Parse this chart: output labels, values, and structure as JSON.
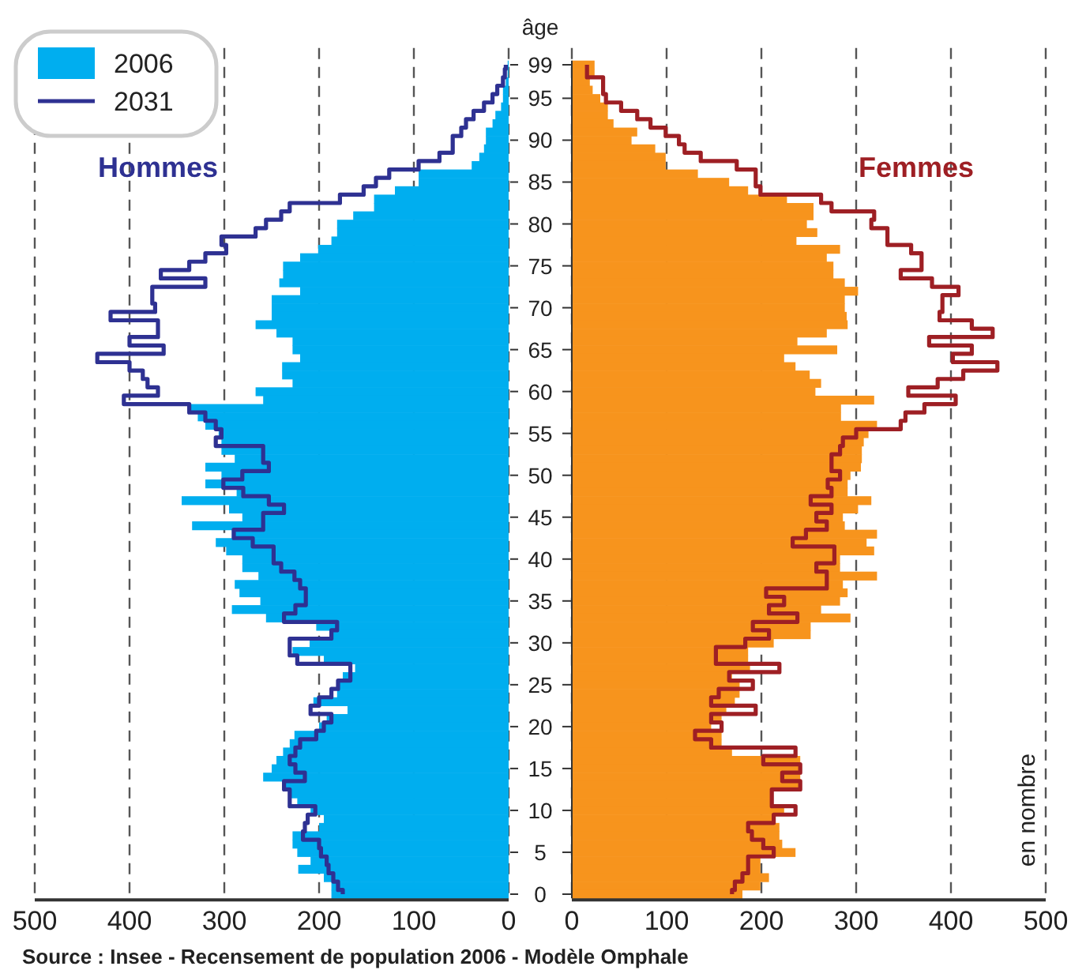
{
  "chart_data": [
    {
      "type": "bar",
      "orientation": "horizontal",
      "title": "Hommes",
      "tick_labels": "x",
      "grid": "x",
      "legend": "top left",
      "xlim": [
        500,
        0
      ],
      "xticks": [
        500,
        400,
        300,
        200,
        100,
        0
      ],
      "categories": [
        "99",
        null,
        null,
        null,
        "95",
        null,
        null,
        null,
        null,
        "90",
        null,
        null,
        null,
        null,
        "85",
        null,
        null,
        null,
        null,
        "80",
        null,
        null,
        null,
        null,
        "75",
        null,
        null,
        null,
        null,
        "70",
        null,
        null,
        null,
        null,
        "65",
        null,
        null,
        null,
        null,
        "60",
        null,
        null,
        null,
        null,
        "55",
        null,
        null,
        null,
        null,
        "50",
        null,
        null,
        null,
        null,
        "45",
        null,
        null,
        null,
        null,
        "40",
        null,
        null,
        null,
        null,
        "35",
        null,
        null,
        null,
        null,
        "30",
        null,
        null,
        null,
        null,
        "25",
        null,
        null,
        null,
        null,
        "20",
        null,
        null,
        null,
        null,
        "15",
        null,
        null,
        null,
        null,
        "10",
        null,
        null,
        null,
        null,
        "5",
        null,
        null,
        null,
        null,
        "0"
      ],
      "series": [
        {
          "name": "2006",
          "type": "bar",
          "color": "#00aeef",
          "values": [
            1,
            1,
            3,
            6,
            6,
            8,
            14,
            17,
            24,
            24,
            26,
            31,
            39,
            95,
            95,
            120,
            142,
            142,
            164,
            181,
            181,
            187,
            201,
            220,
            238,
            238,
            242,
            220,
            250,
            250,
            250,
            267,
            245,
            228,
            228,
            220,
            239,
            239,
            228,
            267,
            259,
            337,
            328,
            320,
            306,
            303,
            303,
            289,
            320,
            303,
            320,
            287,
            345,
            295,
            281,
            334,
            292,
            309,
            298,
            281,
            281,
            264,
            289,
            284,
            262,
            292,
            256,
            203,
            189,
            210,
            228,
            195,
            162,
            175,
            181,
            181,
            206,
            170,
            192,
            200,
            226,
            231,
            238,
            245,
            250,
            259,
            237,
            230,
            223,
            209,
            195,
            200,
            228,
            228,
            223,
            209,
            222,
            195,
            187,
            187
          ]
        },
        {
          "name": "2031",
          "type": "step",
          "color": "#2e3192",
          "values": [
            3,
            4,
            6,
            12,
            17,
            26,
            37,
            45,
            50,
            59,
            59,
            73,
            95,
            126,
            140,
            153,
            178,
            231,
            240,
            256,
            267,
            303,
            298,
            320,
            337,
            367,
            320,
            376,
            376,
            373,
            420,
            370,
            370,
            400,
            364,
            434,
            400,
            386,
            381,
            370,
            406,
            337,
            320,
            309,
            303,
            309,
            259,
            259,
            253,
            281,
            301,
            280,
            253,
            237,
            259,
            259,
            290,
            270,
            248,
            248,
            240,
            226,
            220,
            214,
            214,
            225,
            237,
            181,
            187,
            231,
            231,
            223,
            167,
            167,
            180,
            187,
            200,
            209,
            187,
            195,
            203,
            220,
            225,
            231,
            225,
            215,
            237,
            231,
            231,
            204,
            212,
            215,
            217,
            200,
            198,
            192,
            190,
            185,
            180,
            175
          ]
        }
      ],
      "annotations": [
        "Source : Insee - Recensement de population 2006 - Modèle Omphale"
      ]
    },
    {
      "type": "bar",
      "orientation": "horizontal",
      "title": "Femmes",
      "ylabel": "âge",
      "annotations": [
        "en nombre"
      ],
      "grid": "x",
      "xlim": [
        0,
        500
      ],
      "xticks": [
        0,
        100,
        200,
        300,
        400,
        500
      ],
      "categories": [
        "99",
        null,
        null,
        null,
        "95",
        null,
        null,
        null,
        null,
        "90",
        null,
        null,
        null,
        null,
        "85",
        null,
        null,
        null,
        null,
        "80",
        null,
        null,
        null,
        null,
        "75",
        null,
        null,
        null,
        null,
        "70",
        null,
        null,
        null,
        null,
        "65",
        null,
        null,
        null,
        null,
        "60",
        null,
        null,
        null,
        null,
        "55",
        null,
        null,
        null,
        null,
        "50",
        null,
        null,
        null,
        null,
        "45",
        null,
        null,
        null,
        null,
        "40",
        null,
        null,
        null,
        null,
        "35",
        null,
        null,
        null,
        null,
        "30",
        null,
        null,
        null,
        null,
        "25",
        null,
        null,
        null,
        null,
        "20",
        null,
        null,
        null,
        null,
        "15",
        null,
        null,
        null,
        null,
        "10",
        null,
        null,
        null,
        null,
        "5",
        null,
        null,
        null,
        null,
        "0"
      ],
      "series": [
        {
          "type": "bar",
          "color": "#f7941d",
          "values": [
            24,
            24,
            19,
            22,
            30,
            38,
            38,
            44,
            69,
            63,
            88,
            99,
            99,
            133,
            166,
            186,
            227,
            255,
            255,
            248,
            259,
            237,
            283,
            269,
            276,
            276,
            288,
            302,
            288,
            288,
            290,
            291,
            269,
            238,
            280,
            224,
            236,
            251,
            263,
            257,
            319,
            284,
            284,
            322,
            313,
            308,
            306,
            306,
            305,
            294,
            291,
            291,
            316,
            302,
            286,
            288,
            322,
            311,
            319,
            283,
            283,
            322,
            286,
            291,
            283,
            263,
            294,
            252,
            252,
            213,
            186,
            186,
            188,
            169,
            177,
            177,
            172,
            163,
            158,
            147,
            158,
            158,
            169,
            241,
            241,
            241,
            241,
            211,
            211,
            224,
            213,
            219,
            219,
            222,
            236,
            199,
            199,
            208,
            199,
            180
          ]
        },
        {
          "type": "step",
          "color": "#9e1f24",
          "values": [
            16,
            16,
            33,
            33,
            36,
            52,
            69,
            83,
            99,
            113,
            119,
            136,
            174,
            194,
            194,
            199,
            263,
            274,
            319,
            316,
            333,
            333,
            358,
            369,
            369,
            347,
            380,
            408,
            391,
            391,
            388,
            422,
            444,
            377,
            422,
            402,
            449,
            413,
            386,
            355,
            405,
            372,
            352,
            347,
            300,
            286,
            283,
            274,
            274,
            283,
            270,
            274,
            252,
            274,
            258,
            269,
            247,
            233,
            277,
            277,
            258,
            269,
            269,
            205,
            224,
            208,
            238,
            191,
            208,
            183,
            152,
            152,
            219,
            166,
            191,
            155,
            147,
            194,
            147,
            158,
            130,
            147,
            236,
            202,
            241,
            222,
            241,
            211,
            211,
            236,
            213,
            186,
            190,
            202,
            213,
            186,
            186,
            180,
            172,
            169
          ]
        }
      ]
    }
  ]
}
